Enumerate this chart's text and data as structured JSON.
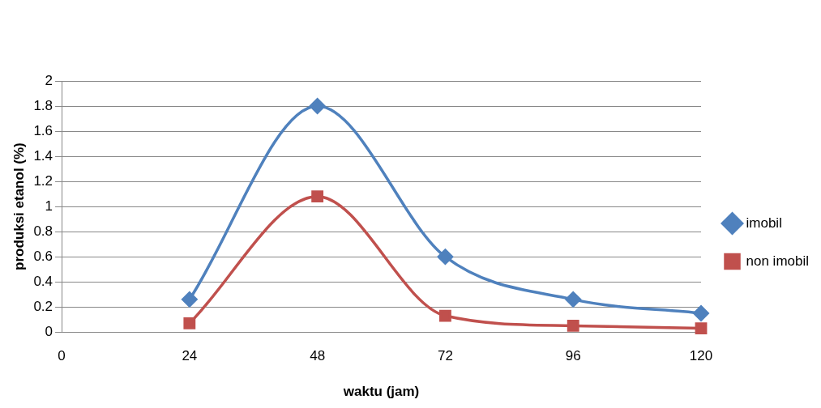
{
  "chart_data": {
    "type": "line",
    "xlabel": "waktu (jam)",
    "ylabel": "produksi etanol (%)",
    "x": [
      24,
      48,
      72,
      96,
      120
    ],
    "series": [
      {
        "name": "imobil",
        "color": "#4f81bd",
        "marker": "diamond",
        "values": [
          0.26,
          1.8,
          0.6,
          0.26,
          0.15
        ]
      },
      {
        "name": "non imobil",
        "color": "#c0504d",
        "marker": "square",
        "values": [
          0.07,
          1.08,
          0.13,
          0.05,
          0.03
        ]
      }
    ],
    "xlim": [
      0,
      120
    ],
    "xticks": [
      0,
      24,
      48,
      72,
      96,
      120
    ],
    "ylim": [
      0,
      2
    ],
    "yticks": [
      0,
      0.2,
      0.4,
      0.6,
      0.8,
      1,
      1.2,
      1.4,
      1.6,
      1.8,
      2
    ],
    "grid": "y",
    "legend": "right"
  }
}
